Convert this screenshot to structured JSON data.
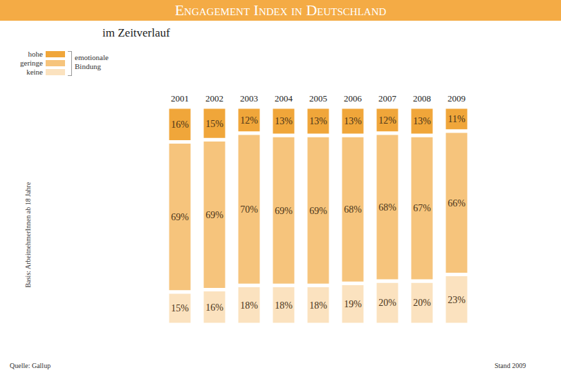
{
  "chart_data": {
    "type": "bar",
    "stacked": true,
    "title": "Engagement Index in Deutschland",
    "subtitle": "im Zeitverlauf",
    "legend_title": "emotionale Bindung",
    "y_label": "Basis: ArbeitnehmerInnen ab 18 Jahre",
    "source": "Quelle: Gallup",
    "note": "Stand 2009",
    "categories": [
      "2001",
      "2002",
      "2003",
      "2004",
      "2005",
      "2006",
      "2007",
      "2008",
      "2009"
    ],
    "series": [
      {
        "name": "hohe",
        "color": "#f0a63a",
        "values": [
          16,
          15,
          12,
          13,
          13,
          13,
          12,
          13,
          11
        ],
        "value_labels": [
          "16%",
          "15%",
          "12%",
          "13%",
          "13%",
          "13%",
          "12%",
          "13%",
          "11%"
        ]
      },
      {
        "name": "geringe",
        "color": "#f6c47c",
        "values": [
          69,
          69,
          70,
          69,
          69,
          68,
          68,
          67,
          66
        ],
        "value_labels": [
          "69%",
          "69%",
          "70%",
          "69%",
          "69%",
          "68%",
          "68%",
          "67%",
          "66%"
        ]
      },
      {
        "name": "keine",
        "color": "#fbe2bf",
        "values": [
          15,
          16,
          18,
          18,
          18,
          19,
          20,
          20,
          23
        ],
        "value_labels": [
          "15%",
          "16%",
          "18%",
          "18%",
          "18%",
          "19%",
          "20%",
          "20%",
          "23%"
        ]
      }
    ],
    "ylim": [
      0,
      100
    ],
    "tick_labels": "x",
    "data_labels": true,
    "legend": "top-left"
  }
}
